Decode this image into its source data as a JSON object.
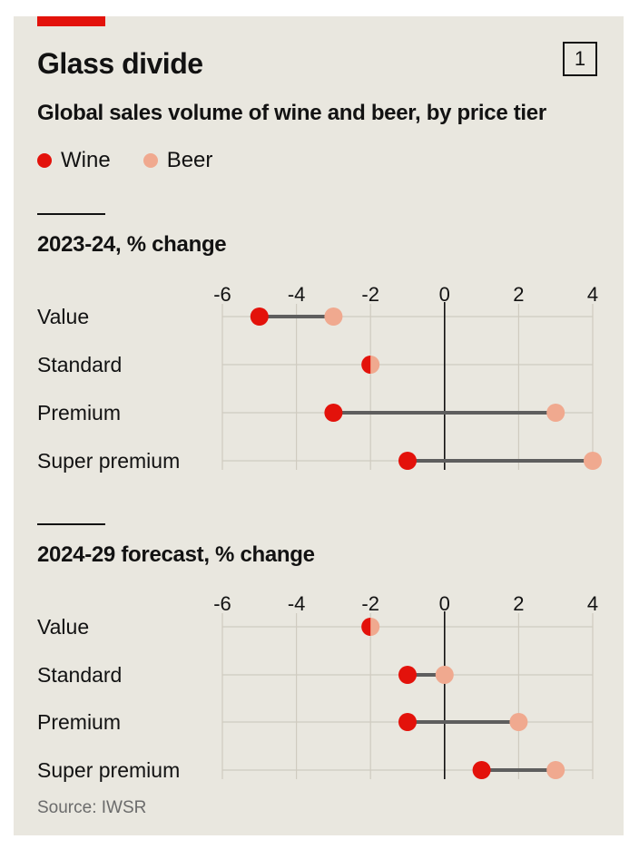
{
  "header": {
    "title": "Glass divide",
    "chart_number": "1",
    "subtitle": "Global sales volume of wine and beer, by price tier"
  },
  "legend": [
    {
      "label": "Wine",
      "color": "#e3120b"
    },
    {
      "label": "Beer",
      "color": "#f0a98f"
    }
  ],
  "footer": {
    "source": "Source: IWSR"
  },
  "chart_data": [
    {
      "type": "dumbbell",
      "title": "2023-24, % change",
      "categories": [
        "Value",
        "Standard",
        "Premium",
        "Super premium"
      ],
      "xlim": [
        -6,
        4
      ],
      "xticks": [
        "-6",
        "-4",
        "-2",
        "0",
        "2",
        "4"
      ],
      "series": [
        {
          "name": "Wine",
          "values": [
            -5,
            -2,
            -3,
            -1
          ]
        },
        {
          "name": "Beer",
          "values": [
            -3,
            -2,
            3,
            4
          ]
        }
      ]
    },
    {
      "type": "dumbbell",
      "title": "2024-29 forecast, % change",
      "categories": [
        "Value",
        "Standard",
        "Premium",
        "Super premium"
      ],
      "xlim": [
        -6,
        4
      ],
      "xticks": [
        "-6",
        "-4",
        "-2",
        "0",
        "2",
        "4"
      ],
      "series": [
        {
          "name": "Wine",
          "values": [
            -2,
            -1,
            -1,
            1
          ]
        },
        {
          "name": "Beer",
          "values": [
            -2,
            0,
            2,
            3
          ]
        }
      ]
    }
  ]
}
